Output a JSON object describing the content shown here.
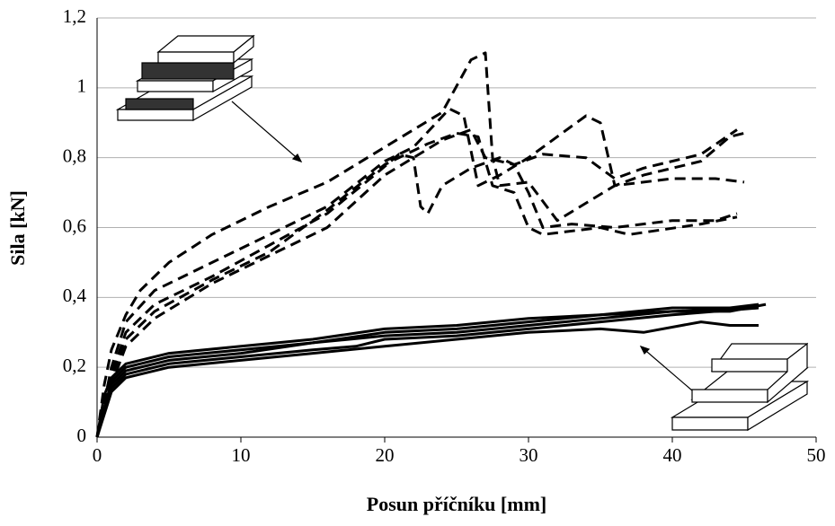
{
  "chart_data": {
    "type": "line",
    "xlabel": "Posun příčníku [mm]",
    "ylabel": "Sila [kN]",
    "xlim": [
      0,
      50
    ],
    "ylim": [
      0,
      1.2
    ],
    "xticks": [
      0,
      10,
      20,
      30,
      40,
      50
    ],
    "yticks": [
      0,
      {
        "value": 0.2,
        "label": "0,2"
      },
      {
        "value": 0.4,
        "label": "0,4"
      },
      {
        "value": 0.6,
        "label": "0,6"
      },
      {
        "value": 0.8,
        "label": "0,8"
      },
      1,
      {
        "value": 1.2,
        "label": "1,2"
      }
    ],
    "grid": true,
    "series": [
      {
        "color": "#000000",
        "dashed": true,
        "x": [
          0,
          0.5,
          1,
          2,
          3,
          5,
          8,
          12,
          16,
          20,
          24,
          26,
          27,
          27.5,
          28,
          30,
          32,
          36,
          40,
          43,
          45
        ],
        "values": [
          0,
          0.15,
          0.25,
          0.35,
          0.42,
          0.5,
          0.58,
          0.66,
          0.73,
          0.83,
          0.93,
          1.08,
          1.1,
          0.8,
          0.72,
          0.73,
          0.62,
          0.72,
          0.74,
          0.74,
          0.73
        ]
      },
      {
        "color": "#000000",
        "dashed": true,
        "x": [
          0,
          1,
          2,
          4,
          8,
          12,
          16,
          20,
          22,
          24.5,
          25.5,
          26.5,
          28,
          30,
          33,
          34,
          35,
          36,
          38,
          42,
          44,
          45
        ],
        "values": [
          0,
          0.2,
          0.33,
          0.42,
          0.5,
          0.58,
          0.66,
          0.79,
          0.83,
          0.94,
          0.92,
          0.72,
          0.75,
          0.8,
          0.89,
          0.92,
          0.9,
          0.72,
          0.75,
          0.79,
          0.86,
          0.87
        ]
      },
      {
        "color": "#000000",
        "dashed": true,
        "x": [
          0,
          1,
          2,
          4,
          8,
          12,
          16,
          19,
          21,
          22,
          22.5,
          23,
          24,
          26,
          28,
          29,
          30,
          31,
          33,
          36,
          40,
          43,
          44.5
        ],
        "values": [
          0,
          0.18,
          0.3,
          0.38,
          0.46,
          0.55,
          0.64,
          0.74,
          0.81,
          0.8,
          0.66,
          0.64,
          0.72,
          0.77,
          0.8,
          0.78,
          0.7,
          0.6,
          0.61,
          0.6,
          0.62,
          0.62,
          0.64
        ]
      },
      {
        "color": "#000000",
        "dashed": true,
        "x": [
          0,
          1,
          2,
          4,
          8,
          12,
          16,
          20,
          23,
          25,
          26.5,
          27.5,
          29,
          30,
          31,
          35,
          37,
          42,
          44.5
        ],
        "values": [
          0,
          0.17,
          0.28,
          0.36,
          0.45,
          0.53,
          0.65,
          0.78,
          0.84,
          0.87,
          0.86,
          0.72,
          0.7,
          0.6,
          0.58,
          0.6,
          0.58,
          0.61,
          0.63
        ]
      },
      {
        "color": "#000000",
        "dashed": true,
        "x": [
          0,
          1,
          2,
          4,
          8,
          12,
          16,
          20,
          22,
          24,
          26,
          27,
          29,
          31,
          34,
          36,
          38,
          42,
          44.5
        ],
        "values": [
          0,
          0.15,
          0.26,
          0.34,
          0.44,
          0.52,
          0.6,
          0.75,
          0.8,
          0.85,
          0.88,
          0.8,
          0.78,
          0.81,
          0.8,
          0.74,
          0.77,
          0.81,
          0.88
        ]
      },
      {
        "color": "#000000",
        "dashed": false,
        "x": [
          0,
          0.5,
          1,
          2,
          5,
          10,
          15,
          20,
          25,
          30,
          35,
          40,
          44,
          46
        ],
        "values": [
          0,
          0.12,
          0.17,
          0.21,
          0.24,
          0.26,
          0.28,
          0.31,
          0.32,
          0.34,
          0.35,
          0.37,
          0.37,
          0.38
        ]
      },
      {
        "color": "#000000",
        "dashed": false,
        "x": [
          0,
          1,
          2,
          5,
          10,
          15,
          20,
          25,
          30,
          35,
          40,
          46
        ],
        "values": [
          0,
          0.16,
          0.2,
          0.23,
          0.25,
          0.27,
          0.3,
          0.31,
          0.33,
          0.35,
          0.36,
          0.37
        ]
      },
      {
        "color": "#000000",
        "dashed": false,
        "x": [
          0,
          1,
          2,
          5,
          10,
          15,
          20,
          25,
          30,
          35,
          40,
          44,
          46.5
        ],
        "values": [
          0,
          0.15,
          0.19,
          0.22,
          0.24,
          0.27,
          0.29,
          0.3,
          0.32,
          0.34,
          0.36,
          0.36,
          0.38
        ]
      },
      {
        "color": "#000000",
        "dashed": false,
        "x": [
          0,
          1,
          2,
          5,
          10,
          15,
          18,
          20,
          25,
          30,
          35,
          40,
          46
        ],
        "values": [
          0,
          0.14,
          0.18,
          0.21,
          0.23,
          0.25,
          0.26,
          0.28,
          0.29,
          0.31,
          0.33,
          0.35,
          0.37
        ]
      },
      {
        "color": "#000000",
        "dashed": false,
        "x": [
          0,
          1,
          2,
          5,
          10,
          15,
          20,
          25,
          30,
          35,
          38,
          42,
          44,
          46
        ],
        "values": [
          0,
          0.13,
          0.17,
          0.2,
          0.22,
          0.24,
          0.26,
          0.28,
          0.3,
          0.31,
          0.3,
          0.33,
          0.32,
          0.32
        ]
      }
    ]
  }
}
